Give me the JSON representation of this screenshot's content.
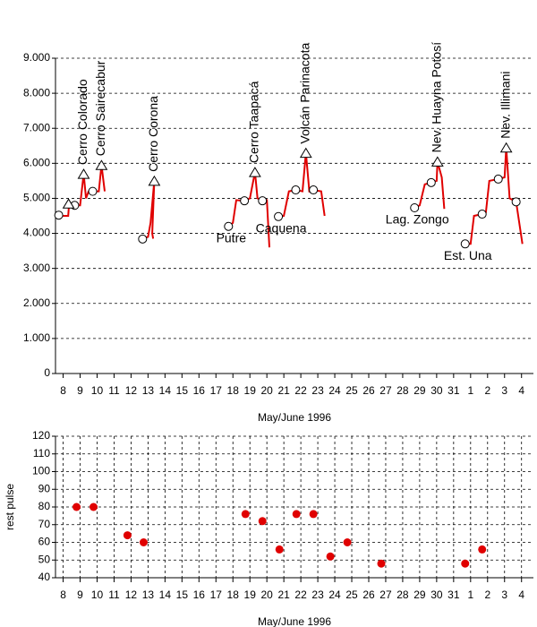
{
  "chart_data": [
    {
      "type": "line",
      "xlabel": "May/June 1996",
      "xlim": [
        -0.45,
        27.7
      ],
      "xticks": [
        {
          "value": 0,
          "label": "8"
        },
        {
          "value": 1,
          "label": "9"
        },
        {
          "value": 2,
          "label": "10"
        },
        {
          "value": 3,
          "label": "11"
        },
        {
          "value": 4,
          "label": "12"
        },
        {
          "value": 5,
          "label": "13"
        },
        {
          "value": 6,
          "label": "14"
        },
        {
          "value": 7,
          "label": "15"
        },
        {
          "value": 8,
          "label": "16"
        },
        {
          "value": 9,
          "label": "17"
        },
        {
          "value": 10,
          "label": "18"
        },
        {
          "value": 11,
          "label": "19"
        },
        {
          "value": 12,
          "label": "20"
        },
        {
          "value": 13,
          "label": "21"
        },
        {
          "value": 14,
          "label": "22"
        },
        {
          "value": 15,
          "label": "23"
        },
        {
          "value": 16,
          "label": "24"
        },
        {
          "value": 17,
          "label": "25"
        },
        {
          "value": 18,
          "label": "26"
        },
        {
          "value": 19,
          "label": "27"
        },
        {
          "value": 20,
          "label": "28"
        },
        {
          "value": 21,
          "label": "29"
        },
        {
          "value": 22,
          "label": "30"
        },
        {
          "value": 23,
          "label": "31"
        },
        {
          "value": 24,
          "label": "1"
        },
        {
          "value": 25,
          "label": "2"
        },
        {
          "value": 26,
          "label": "3"
        },
        {
          "value": 27,
          "label": "4"
        }
      ],
      "ylim": [
        0,
        9000
      ],
      "yticks": [
        0,
        {
          "value": 1000,
          "label": "1.000"
        },
        {
          "value": 2000,
          "label": "2.000"
        },
        {
          "value": 3000,
          "label": "3.000"
        },
        {
          "value": 4000,
          "label": "4.000"
        },
        {
          "value": 5000,
          "label": "5.000"
        },
        {
          "value": 6000,
          "label": "6.000"
        },
        {
          "value": 7000,
          "label": "7.000"
        },
        {
          "value": 8000,
          "label": "8.000"
        },
        {
          "value": 9000,
          "label": "9.000"
        }
      ],
      "grid": "y",
      "color": "#e00000",
      "x": [
        -0.4,
        0.3,
        0.35,
        0.7,
        1.0,
        1.21,
        1.35,
        1.5,
        1.74,
        2.1,
        2.26,
        2.45,
        null,
        4.65,
        5.0,
        5.15,
        5.37,
        5.25,
        5.3,
        null,
        9.74,
        10.0,
        10.2,
        10.68,
        11.0,
        11.3,
        11.45,
        11.74,
        12.0,
        12.15,
        null,
        12.68,
        13.0,
        13.3,
        13.7,
        14.1,
        14.3,
        14.5,
        14.74,
        15.2,
        15.4,
        null,
        20.7,
        21.0,
        21.3,
        21.68,
        22.0,
        22.05,
        22.3,
        22.45,
        null,
        23.68,
        24.0,
        24.2,
        24.68,
        24.9,
        25.1,
        25.63,
        26.0,
        26.1,
        26.3,
        26.68,
        27.05
      ],
      "values": [
        4500,
        4500,
        4850,
        4800,
        4800,
        5700,
        5000,
        5200,
        5200,
        5200,
        5950,
        5200,
        null,
        3850,
        3900,
        4300,
        5500,
        4000,
        3850,
        null,
        4200,
        4300,
        4950,
        4930,
        5000,
        5750,
        5000,
        4930,
        4950,
        3600,
        null,
        4480,
        4500,
        5200,
        5240,
        5200,
        6300,
        5200,
        5240,
        5200,
        4500,
        null,
        4730,
        4800,
        5400,
        5450,
        5500,
        6050,
        5600,
        4700,
        null,
        3700,
        3700,
        4500,
        4550,
        4600,
        5500,
        5550,
        5600,
        6450,
        5000,
        4900,
        3700
      ],
      "sites": {
        "x": [
          -0.26,
          0.68,
          1.74,
          4.68,
          9.74,
          10.68,
          11.74,
          12.68,
          13.7,
          14.74,
          20.7,
          21.68,
          23.68,
          24.68,
          25.63,
          26.68
        ],
        "values": [
          4520,
          4800,
          5200,
          3840,
          4200,
          4930,
          4930,
          4480,
          5240,
          5240,
          4730,
          5450,
          3700,
          4550,
          5550,
          4900
        ],
        "labels": [
          null,
          null,
          null,
          null,
          "Putre",
          null,
          null,
          "Caquena",
          null,
          null,
          "Lag. Zongo",
          null,
          "Est. Una",
          null,
          null,
          null
        ]
      },
      "peaks": {
        "x": [
          0.32,
          1.21,
          2.26,
          5.37,
          11.3,
          14.3,
          22.05,
          26.1
        ],
        "values": [
          4850,
          5700,
          5950,
          5500,
          5750,
          6300,
          6050,
          6450
        ],
        "labels": [
          null,
          "Cerro Colorado",
          "Cerro Sairecabur",
          "Cerro Corona",
          "Cerro Taapacá",
          "Volcán Parinacota",
          "Nev. Huayna Potosí",
          "Nev. Illimani"
        ]
      }
    },
    {
      "type": "scatter",
      "xlabel": "May/June 1996",
      "ylabel": "rest pulse",
      "xlim": [
        -0.45,
        27.7
      ],
      "xticks": [
        {
          "value": 0,
          "label": "8"
        },
        {
          "value": 1,
          "label": "9"
        },
        {
          "value": 2,
          "label": "10"
        },
        {
          "value": 3,
          "label": "11"
        },
        {
          "value": 4,
          "label": "12"
        },
        {
          "value": 5,
          "label": "13"
        },
        {
          "value": 6,
          "label": "14"
        },
        {
          "value": 7,
          "label": "15"
        },
        {
          "value": 8,
          "label": "16"
        },
        {
          "value": 9,
          "label": "17"
        },
        {
          "value": 10,
          "label": "18"
        },
        {
          "value": 11,
          "label": "19"
        },
        {
          "value": 12,
          "label": "20"
        },
        {
          "value": 13,
          "label": "21"
        },
        {
          "value": 14,
          "label": "22"
        },
        {
          "value": 15,
          "label": "23"
        },
        {
          "value": 16,
          "label": "24"
        },
        {
          "value": 17,
          "label": "25"
        },
        {
          "value": 18,
          "label": "26"
        },
        {
          "value": 19,
          "label": "27"
        },
        {
          "value": 20,
          "label": "28"
        },
        {
          "value": 21,
          "label": "29"
        },
        {
          "value": 22,
          "label": "30"
        },
        {
          "value": 23,
          "label": "31"
        },
        {
          "value": 24,
          "label": "1"
        },
        {
          "value": 25,
          "label": "2"
        },
        {
          "value": 26,
          "label": "3"
        },
        {
          "value": 27,
          "label": "4"
        }
      ],
      "ylim": [
        40,
        120
      ],
      "yticks": [
        40,
        50,
        60,
        70,
        80,
        90,
        100,
        110,
        120
      ],
      "grid": "both",
      "color": "#e00000",
      "x": [
        0.79,
        1.79,
        3.79,
        4.74,
        10.74,
        11.74,
        12.74,
        13.74,
        14.74,
        15.74,
        16.74,
        18.74,
        23.68,
        24.68
      ],
      "values": [
        80,
        80,
        64,
        60,
        76,
        72,
        56,
        76,
        76,
        52,
        60,
        48,
        48,
        56
      ]
    }
  ]
}
